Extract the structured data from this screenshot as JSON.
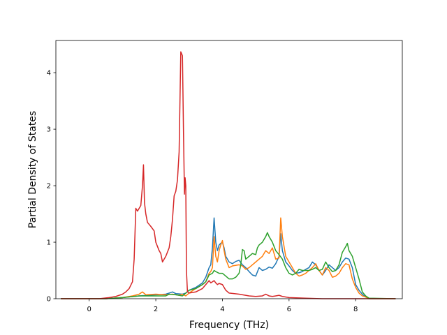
{
  "chart_data": {
    "type": "line",
    "title": "",
    "xlabel": "Frequency (THz)",
    "ylabel": "Partial Density of States",
    "xlim": [
      -1.0,
      9.4
    ],
    "ylim": [
      0,
      4.57
    ],
    "xticks": [
      0,
      2,
      4,
      6,
      8
    ],
    "yticks": [
      0,
      1,
      2,
      3,
      4
    ],
    "grid": false,
    "legend": "none",
    "series": [
      {
        "color": "#1f77b4",
        "points": [
          [
            -0.85,
            0
          ],
          [
            0.5,
            0
          ],
          [
            1.0,
            0.02
          ],
          [
            1.5,
            0.05
          ],
          [
            2.0,
            0.07
          ],
          [
            2.3,
            0.08
          ],
          [
            2.4,
            0.1
          ],
          [
            2.5,
            0.12
          ],
          [
            2.6,
            0.09
          ],
          [
            2.8,
            0.08
          ],
          [
            2.9,
            0.1
          ],
          [
            3.0,
            0.15
          ],
          [
            3.2,
            0.2
          ],
          [
            3.4,
            0.28
          ],
          [
            3.5,
            0.38
          ],
          [
            3.6,
            0.55
          ],
          [
            3.65,
            0.6
          ],
          [
            3.7,
            0.9
          ],
          [
            3.75,
            1.43
          ],
          [
            3.8,
            1.0
          ],
          [
            3.85,
            0.85
          ],
          [
            3.9,
            0.95
          ],
          [
            3.95,
            0.98
          ],
          [
            4.0,
            1.0
          ],
          [
            4.05,
            0.9
          ],
          [
            4.1,
            0.75
          ],
          [
            4.2,
            0.65
          ],
          [
            4.3,
            0.62
          ],
          [
            4.4,
            0.66
          ],
          [
            4.5,
            0.68
          ],
          [
            4.6,
            0.6
          ],
          [
            4.7,
            0.55
          ],
          [
            4.8,
            0.48
          ],
          [
            4.9,
            0.42
          ],
          [
            5.0,
            0.4
          ],
          [
            5.1,
            0.55
          ],
          [
            5.2,
            0.5
          ],
          [
            5.3,
            0.52
          ],
          [
            5.4,
            0.56
          ],
          [
            5.5,
            0.54
          ],
          [
            5.6,
            0.62
          ],
          [
            5.7,
            0.75
          ],
          [
            5.75,
            1.15
          ],
          [
            5.8,
            0.85
          ],
          [
            5.9,
            0.65
          ],
          [
            6.0,
            0.58
          ],
          [
            6.1,
            0.5
          ],
          [
            6.2,
            0.45
          ],
          [
            6.3,
            0.46
          ],
          [
            6.4,
            0.48
          ],
          [
            6.5,
            0.52
          ],
          [
            6.6,
            0.55
          ],
          [
            6.7,
            0.65
          ],
          [
            6.8,
            0.6
          ],
          [
            6.9,
            0.5
          ],
          [
            7.0,
            0.42
          ],
          [
            7.1,
            0.5
          ],
          [
            7.2,
            0.6
          ],
          [
            7.3,
            0.55
          ],
          [
            7.4,
            0.5
          ],
          [
            7.5,
            0.55
          ],
          [
            7.6,
            0.65
          ],
          [
            7.7,
            0.72
          ],
          [
            7.8,
            0.7
          ],
          [
            7.9,
            0.55
          ],
          [
            8.0,
            0.25
          ],
          [
            8.1,
            0.15
          ],
          [
            8.2,
            0.08
          ],
          [
            8.3,
            0.03
          ],
          [
            8.4,
            0.0
          ],
          [
            9.2,
            0
          ]
        ]
      },
      {
        "color": "#ff7f0e",
        "points": [
          [
            -0.85,
            0
          ],
          [
            0.5,
            0
          ],
          [
            1.0,
            0.02
          ],
          [
            1.3,
            0.05
          ],
          [
            1.5,
            0.08
          ],
          [
            1.6,
            0.12
          ],
          [
            1.7,
            0.07
          ],
          [
            2.0,
            0.08
          ],
          [
            2.3,
            0.07
          ],
          [
            2.5,
            0.08
          ],
          [
            2.7,
            0.06
          ],
          [
            2.8,
            0.08
          ],
          [
            2.9,
            0.05
          ],
          [
            3.0,
            0.1
          ],
          [
            3.2,
            0.18
          ],
          [
            3.4,
            0.25
          ],
          [
            3.5,
            0.3
          ],
          [
            3.6,
            0.45
          ],
          [
            3.65,
            0.48
          ],
          [
            3.7,
            0.55
          ],
          [
            3.75,
            1.1
          ],
          [
            3.8,
            0.75
          ],
          [
            3.85,
            0.65
          ],
          [
            3.9,
            0.85
          ],
          [
            3.95,
            0.95
          ],
          [
            4.0,
            1.03
          ],
          [
            4.05,
            0.85
          ],
          [
            4.1,
            0.7
          ],
          [
            4.2,
            0.55
          ],
          [
            4.3,
            0.58
          ],
          [
            4.5,
            0.6
          ],
          [
            4.6,
            0.58
          ],
          [
            4.7,
            0.52
          ],
          [
            4.8,
            0.55
          ],
          [
            4.9,
            0.6
          ],
          [
            5.0,
            0.65
          ],
          [
            5.1,
            0.7
          ],
          [
            5.2,
            0.75
          ],
          [
            5.3,
            0.85
          ],
          [
            5.4,
            0.8
          ],
          [
            5.5,
            0.9
          ],
          [
            5.6,
            0.7
          ],
          [
            5.7,
            0.72
          ],
          [
            5.75,
            1.43
          ],
          [
            5.8,
            1.1
          ],
          [
            5.9,
            0.75
          ],
          [
            6.0,
            0.65
          ],
          [
            6.1,
            0.55
          ],
          [
            6.2,
            0.45
          ],
          [
            6.3,
            0.4
          ],
          [
            6.4,
            0.42
          ],
          [
            6.5,
            0.45
          ],
          [
            6.6,
            0.5
          ],
          [
            6.7,
            0.55
          ],
          [
            6.8,
            0.62
          ],
          [
            6.9,
            0.5
          ],
          [
            7.0,
            0.42
          ],
          [
            7.1,
            0.55
          ],
          [
            7.2,
            0.5
          ],
          [
            7.3,
            0.38
          ],
          [
            7.4,
            0.4
          ],
          [
            7.5,
            0.45
          ],
          [
            7.6,
            0.55
          ],
          [
            7.7,
            0.62
          ],
          [
            7.8,
            0.6
          ],
          [
            7.9,
            0.35
          ],
          [
            8.0,
            0.2
          ],
          [
            8.1,
            0.1
          ],
          [
            8.2,
            0.05
          ],
          [
            8.3,
            0.03
          ],
          [
            8.4,
            0.0
          ],
          [
            9.2,
            0
          ]
        ]
      },
      {
        "color": "#2ca02c",
        "points": [
          [
            -0.85,
            0
          ],
          [
            0.5,
            0
          ],
          [
            1.0,
            0.02
          ],
          [
            1.5,
            0.05
          ],
          [
            2.0,
            0.05
          ],
          [
            2.3,
            0.05
          ],
          [
            2.4,
            0.08
          ],
          [
            2.6,
            0.07
          ],
          [
            2.8,
            0.05
          ],
          [
            2.9,
            0.1
          ],
          [
            3.0,
            0.15
          ],
          [
            3.2,
            0.18
          ],
          [
            3.4,
            0.25
          ],
          [
            3.5,
            0.3
          ],
          [
            3.6,
            0.42
          ],
          [
            3.7,
            0.45
          ],
          [
            3.75,
            0.5
          ],
          [
            3.8,
            0.48
          ],
          [
            3.9,
            0.45
          ],
          [
            4.0,
            0.45
          ],
          [
            4.1,
            0.4
          ],
          [
            4.2,
            0.35
          ],
          [
            4.3,
            0.35
          ],
          [
            4.4,
            0.38
          ],
          [
            4.5,
            0.45
          ],
          [
            4.55,
            0.6
          ],
          [
            4.6,
            0.87
          ],
          [
            4.65,
            0.85
          ],
          [
            4.7,
            0.7
          ],
          [
            4.8,
            0.75
          ],
          [
            4.9,
            0.8
          ],
          [
            5.0,
            0.78
          ],
          [
            5.05,
            0.9
          ],
          [
            5.1,
            0.95
          ],
          [
            5.2,
            1.0
          ],
          [
            5.3,
            1.1
          ],
          [
            5.35,
            1.17
          ],
          [
            5.4,
            1.1
          ],
          [
            5.5,
            1.0
          ],
          [
            5.6,
            0.85
          ],
          [
            5.7,
            0.78
          ],
          [
            5.8,
            0.7
          ],
          [
            5.9,
            0.55
          ],
          [
            6.0,
            0.45
          ],
          [
            6.1,
            0.42
          ],
          [
            6.2,
            0.45
          ],
          [
            6.3,
            0.52
          ],
          [
            6.4,
            0.5
          ],
          [
            6.5,
            0.5
          ],
          [
            6.6,
            0.5
          ],
          [
            6.7,
            0.52
          ],
          [
            6.8,
            0.55
          ],
          [
            6.9,
            0.5
          ],
          [
            7.0,
            0.52
          ],
          [
            7.1,
            0.65
          ],
          [
            7.2,
            0.55
          ],
          [
            7.3,
            0.48
          ],
          [
            7.4,
            0.5
          ],
          [
            7.5,
            0.6
          ],
          [
            7.6,
            0.82
          ],
          [
            7.7,
            0.92
          ],
          [
            7.75,
            0.98
          ],
          [
            7.8,
            0.85
          ],
          [
            7.9,
            0.75
          ],
          [
            8.0,
            0.55
          ],
          [
            8.1,
            0.35
          ],
          [
            8.2,
            0.12
          ],
          [
            8.3,
            0.05
          ],
          [
            8.4,
            0.01
          ],
          [
            9.2,
            0
          ]
        ]
      },
      {
        "color": "#d62728",
        "points": [
          [
            -0.85,
            0
          ],
          [
            0.3,
            0.0
          ],
          [
            0.6,
            0.02
          ],
          [
            0.8,
            0.04
          ],
          [
            1.0,
            0.08
          ],
          [
            1.1,
            0.12
          ],
          [
            1.2,
            0.18
          ],
          [
            1.3,
            0.3
          ],
          [
            1.35,
            0.7
          ],
          [
            1.4,
            1.6
          ],
          [
            1.45,
            1.55
          ],
          [
            1.5,
            1.6
          ],
          [
            1.55,
            1.65
          ],
          [
            1.6,
            2.0
          ],
          [
            1.63,
            2.37
          ],
          [
            1.66,
            1.7
          ],
          [
            1.7,
            1.5
          ],
          [
            1.75,
            1.35
          ],
          [
            1.85,
            1.28
          ],
          [
            1.95,
            1.2
          ],
          [
            2.0,
            1.0
          ],
          [
            2.1,
            0.85
          ],
          [
            2.15,
            0.8
          ],
          [
            2.2,
            0.65
          ],
          [
            2.3,
            0.75
          ],
          [
            2.4,
            0.9
          ],
          [
            2.45,
            1.1
          ],
          [
            2.5,
            1.4
          ],
          [
            2.55,
            1.82
          ],
          [
            2.6,
            1.9
          ],
          [
            2.65,
            2.1
          ],
          [
            2.7,
            2.6
          ],
          [
            2.75,
            4.37
          ],
          [
            2.8,
            4.3
          ],
          [
            2.83,
            3.0
          ],
          [
            2.86,
            1.85
          ],
          [
            2.88,
            2.14
          ],
          [
            2.9,
            2.0
          ],
          [
            2.92,
            0.5
          ],
          [
            2.95,
            0.12
          ],
          [
            3.0,
            0.1
          ],
          [
            3.2,
            0.12
          ],
          [
            3.4,
            0.18
          ],
          [
            3.5,
            0.25
          ],
          [
            3.6,
            0.32
          ],
          [
            3.65,
            0.28
          ],
          [
            3.7,
            0.3
          ],
          [
            3.75,
            0.32
          ],
          [
            3.8,
            0.28
          ],
          [
            3.85,
            0.25
          ],
          [
            3.9,
            0.27
          ],
          [
            4.0,
            0.25
          ],
          [
            4.1,
            0.15
          ],
          [
            4.2,
            0.1
          ],
          [
            4.5,
            0.08
          ],
          [
            4.8,
            0.05
          ],
          [
            5.0,
            0.04
          ],
          [
            5.2,
            0.05
          ],
          [
            5.3,
            0.08
          ],
          [
            5.4,
            0.05
          ],
          [
            5.5,
            0.04
          ],
          [
            5.6,
            0.05
          ],
          [
            5.7,
            0.06
          ],
          [
            5.8,
            0.04
          ],
          [
            6.0,
            0.02
          ],
          [
            6.5,
            0.01
          ],
          [
            7.0,
            0.0
          ],
          [
            9.2,
            0
          ]
        ]
      }
    ]
  }
}
